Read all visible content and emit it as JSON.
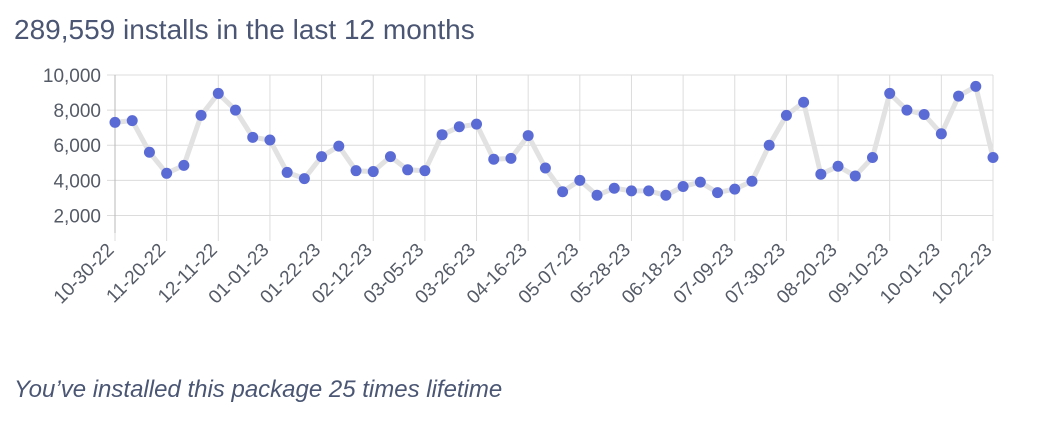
{
  "header": {
    "title": "289,559 installs in the last 12 months"
  },
  "footer": {
    "lifetime_note": "You’ve installed this package 25 times lifetime"
  },
  "colors": {
    "point": "#5b6bd6",
    "line": "#e2e2e2",
    "grid": "#dcdcdc",
    "axis": "#b8b8b8",
    "text": "#4a5673"
  },
  "chart_data": {
    "type": "line",
    "grid": true,
    "legend": "none",
    "ylim": [
      1000,
      10000
    ],
    "yticks": [
      10000,
      8000,
      6000,
      4000,
      2000
    ],
    "ytick_labels": [
      "10,000",
      "8,000",
      "6,000",
      "4,000",
      "2,000"
    ],
    "xtick_labels": [
      "10-30-22",
      "11-20-22",
      "12-11-22",
      "01-01-23",
      "01-22-23",
      "02-12-23",
      "03-05-23",
      "03-26-23",
      "04-16-23",
      "05-07-23",
      "05-28-23",
      "06-18-23",
      "07-09-23",
      "07-30-23",
      "08-20-23",
      "09-10-23",
      "10-01-23",
      "10-22-23"
    ],
    "x": [
      "10-30-22",
      "11-06-22",
      "11-13-22",
      "11-20-22",
      "11-27-22",
      "12-04-22",
      "12-11-22",
      "12-18-22",
      "12-25-22",
      "01-01-23",
      "01-08-23",
      "01-15-23",
      "01-22-23",
      "01-29-23",
      "02-05-23",
      "02-12-23",
      "02-19-23",
      "02-26-23",
      "03-05-23",
      "03-12-23",
      "03-19-23",
      "03-26-23",
      "04-02-23",
      "04-09-23",
      "04-16-23",
      "04-23-23",
      "04-30-23",
      "05-07-23",
      "05-14-23",
      "05-21-23",
      "05-28-23",
      "06-04-23",
      "06-11-23",
      "06-18-23",
      "06-25-23",
      "07-02-23",
      "07-09-23",
      "07-16-23",
      "07-23-23",
      "07-30-23",
      "08-06-23",
      "08-13-23",
      "08-20-23",
      "08-27-23",
      "09-03-23",
      "09-10-23",
      "09-17-23",
      "09-24-23",
      "10-01-23",
      "10-08-23",
      "10-15-23",
      "10-22-23"
    ],
    "series": [
      {
        "values": [
          7300,
          7400,
          5600,
          4400,
          4850,
          7700,
          8950,
          8000,
          6450,
          6300,
          4450,
          4100,
          5350,
          5950,
          4550,
          4500,
          5350,
          4600,
          4550,
          6600,
          7050,
          7200,
          5200,
          5250,
          6550,
          4700,
          3350,
          4000,
          3150,
          3550,
          3400,
          3400,
          3150,
          3650,
          3900,
          3300,
          3500,
          3950,
          6000,
          7700,
          8450,
          4350,
          4800,
          4250,
          5300,
          8950,
          8000,
          7750,
          6650,
          8800,
          9350,
          5300
        ]
      }
    ]
  }
}
